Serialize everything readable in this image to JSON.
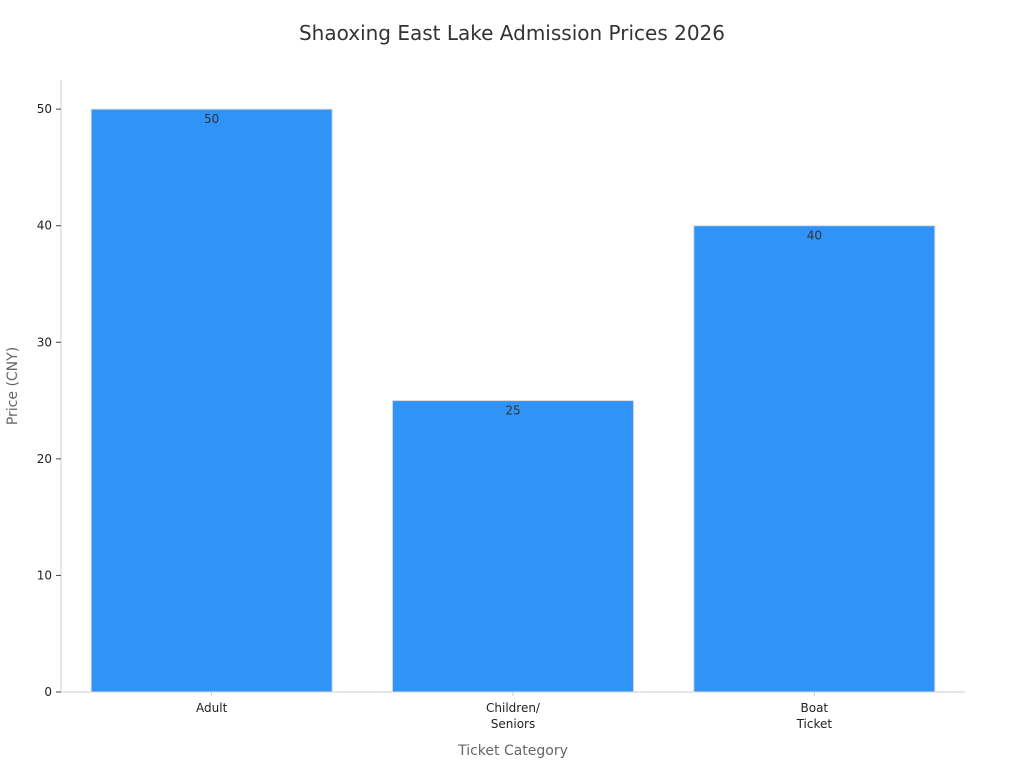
{
  "chart_data": {
    "type": "bar",
    "title": "Shaoxing East Lake Admission Prices 2026",
    "xlabel": "Ticket Category",
    "ylabel": "Price (CNY)",
    "categories": [
      "Adult",
      "Children/\nSeniors",
      "Boat\nTicket"
    ],
    "values": [
      50,
      25,
      40
    ],
    "ylim": [
      0,
      52.5
    ],
    "yticks": [
      0,
      10,
      20,
      30,
      40,
      50
    ],
    "data_labels": true,
    "grid": false,
    "legend": "none",
    "colors": {
      "bar": "#2F93F8",
      "bar_edge": "#d9d9d9",
      "axis": "#cccccc",
      "text": "#333333"
    }
  }
}
